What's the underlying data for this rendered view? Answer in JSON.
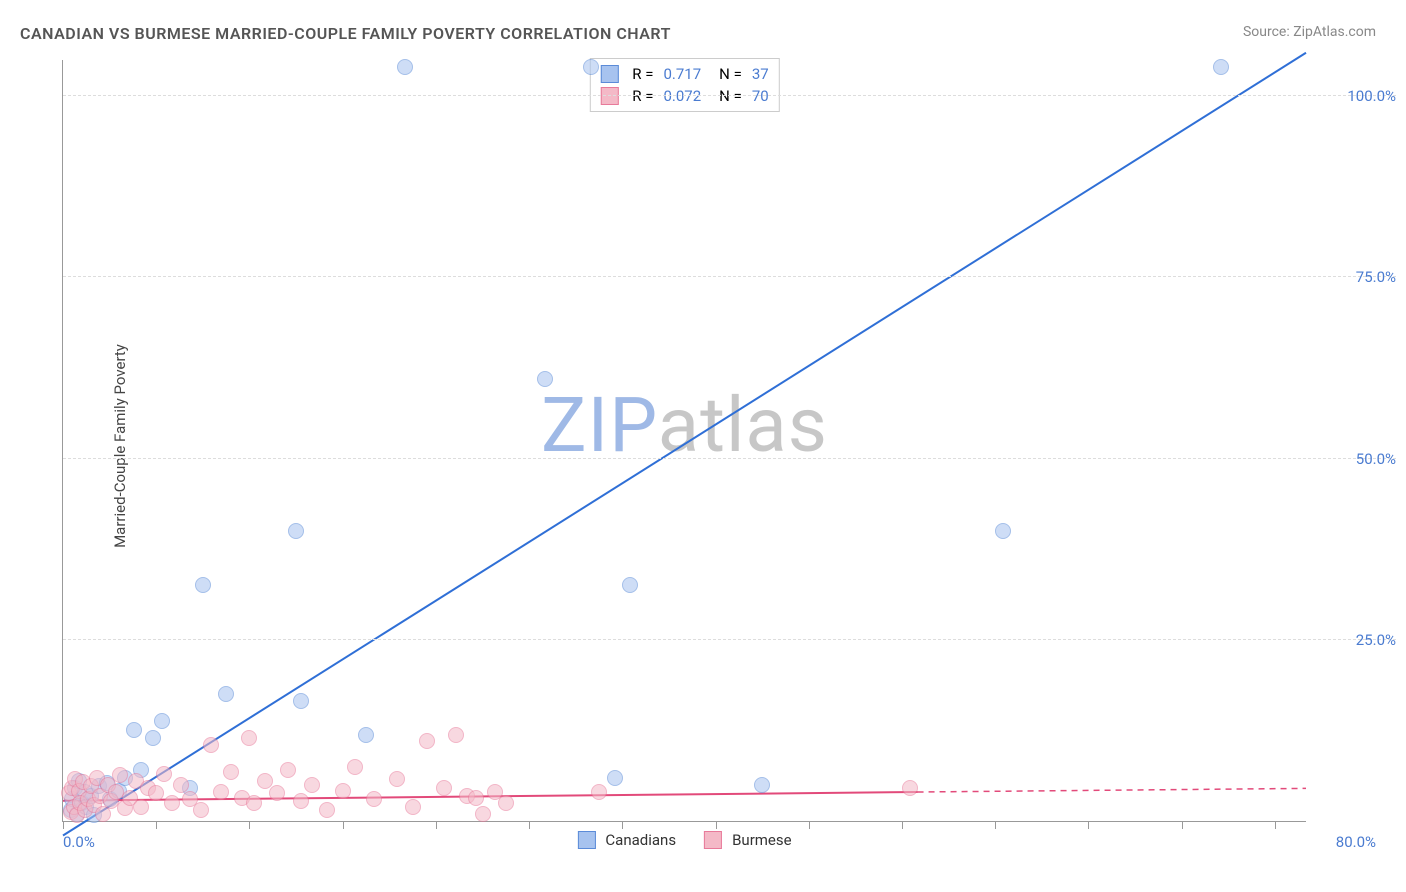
{
  "title": "CANADIAN VS BURMESE MARRIED-COUPLE FAMILY POVERTY CORRELATION CHART",
  "source_prefix": "Source: ",
  "source_name": "ZipAtlas.com",
  "ylabel": "Married-Couple Family Poverty",
  "watermark_a": "ZIP",
  "watermark_b": "atlas",
  "watermark_color_a": "#9fb9e6",
  "watermark_color_b": "#c7c7c7",
  "chart": {
    "type": "scatter",
    "background_color": "#ffffff",
    "grid_color": "#dddddd",
    "axis_color": "#999999",
    "xlim": [
      0,
      80
    ],
    "ylim": [
      0,
      105
    ],
    "x_origin_label": "0.0%",
    "x_max_label": "80.0%",
    "xtick_positions": [
      0,
      6,
      12,
      18,
      24,
      30,
      36,
      42,
      48,
      54,
      60,
      66,
      72,
      78
    ],
    "y_gridlines": [
      25,
      50,
      75,
      100
    ],
    "y_tick_labels": [
      "25.0%",
      "50.0%",
      "75.0%",
      "100.0%"
    ],
    "tick_label_color": "#4a7bd0",
    "marker_radius": 8,
    "marker_opacity": 0.55,
    "series": [
      {
        "name": "Canadians",
        "color_fill": "#a7c3ef",
        "color_stroke": "#5b8bd8",
        "r_label": "R =",
        "r_value": "0.717",
        "n_label": "N =",
        "n_value": "37",
        "trend": {
          "x1": 0,
          "y1": -2,
          "x2": 80,
          "y2": 106,
          "stroke": "#2f6fd6",
          "width": 2,
          "dash": ""
        },
        "points": [
          [
            0.5,
            1.5
          ],
          [
            0.6,
            3.0
          ],
          [
            0.8,
            4.5
          ],
          [
            0.9,
            1.0
          ],
          [
            1.0,
            5.5
          ],
          [
            1.2,
            2.5
          ],
          [
            1.4,
            4.0
          ],
          [
            1.5,
            2.0
          ],
          [
            1.8,
            3.5
          ],
          [
            2.0,
            0.8
          ],
          [
            2.3,
            4.8
          ],
          [
            2.8,
            5.2
          ],
          [
            3.0,
            3.0
          ],
          [
            3.6,
            4.2
          ],
          [
            4.0,
            6.0
          ],
          [
            4.6,
            12.5
          ],
          [
            5.0,
            7.0
          ],
          [
            5.8,
            11.5
          ],
          [
            6.4,
            13.8
          ],
          [
            8.2,
            4.5
          ],
          [
            9.0,
            32.5
          ],
          [
            10.5,
            17.5
          ],
          [
            15.0,
            40.0
          ],
          [
            15.3,
            16.5
          ],
          [
            19.5,
            11.8
          ],
          [
            22.0,
            104.0
          ],
          [
            31.0,
            61.0
          ],
          [
            34.0,
            104.0
          ],
          [
            35.5,
            6.0
          ],
          [
            36.5,
            32.5
          ],
          [
            45.0,
            5.0
          ],
          [
            60.5,
            40.0
          ],
          [
            74.5,
            104.0
          ]
        ]
      },
      {
        "name": "Burmese",
        "color_fill": "#f4b9c7",
        "color_stroke": "#e87a9a",
        "r_label": "R =",
        "r_value": "0.072",
        "n_label": "N =",
        "n_value": "70",
        "trend_solid": {
          "x1": 0,
          "y1": 2.8,
          "x2": 55,
          "y2": 4.0,
          "stroke": "#e24a7a",
          "width": 2
        },
        "trend_dash": {
          "x1": 55,
          "y1": 4.0,
          "x2": 80,
          "y2": 4.5,
          "stroke": "#e24a7a",
          "width": 1.5,
          "dash": "6,5"
        },
        "points": [
          [
            0.4,
            3.8
          ],
          [
            0.5,
            1.2
          ],
          [
            0.6,
            4.6
          ],
          [
            0.7,
            2.0
          ],
          [
            0.8,
            5.8
          ],
          [
            0.9,
            0.8
          ],
          [
            1.0,
            4.2
          ],
          [
            1.1,
            2.5
          ],
          [
            1.3,
            5.4
          ],
          [
            1.4,
            1.5
          ],
          [
            1.6,
            3.0
          ],
          [
            1.8,
            4.8
          ],
          [
            2.0,
            2.2
          ],
          [
            2.2,
            6.0
          ],
          [
            2.4,
            3.5
          ],
          [
            2.6,
            1.0
          ],
          [
            2.9,
            5.0
          ],
          [
            3.1,
            2.8
          ],
          [
            3.4,
            4.0
          ],
          [
            3.7,
            6.3
          ],
          [
            4.0,
            1.8
          ],
          [
            4.3,
            3.2
          ],
          [
            4.7,
            5.5
          ],
          [
            5.0,
            2.0
          ],
          [
            5.5,
            4.5
          ],
          [
            6.0,
            3.8
          ],
          [
            6.5,
            6.5
          ],
          [
            7.0,
            2.5
          ],
          [
            7.6,
            5.0
          ],
          [
            8.2,
            3.0
          ],
          [
            8.9,
            1.5
          ],
          [
            9.5,
            10.5
          ],
          [
            10.2,
            4.0
          ],
          [
            10.8,
            6.8
          ],
          [
            11.5,
            3.2
          ],
          [
            12.0,
            11.5
          ],
          [
            12.3,
            2.5
          ],
          [
            13.0,
            5.5
          ],
          [
            13.8,
            3.8
          ],
          [
            14.5,
            7.0
          ],
          [
            15.3,
            2.8
          ],
          [
            16.0,
            5.0
          ],
          [
            17.0,
            1.5
          ],
          [
            18.0,
            4.2
          ],
          [
            18.8,
            7.5
          ],
          [
            20.0,
            3.0
          ],
          [
            21.5,
            5.8
          ],
          [
            22.5,
            2.0
          ],
          [
            23.4,
            11.0
          ],
          [
            24.5,
            4.5
          ],
          [
            25.3,
            11.8
          ],
          [
            26.0,
            3.5
          ],
          [
            26.6,
            3.2
          ],
          [
            27.0,
            1.0
          ],
          [
            27.8,
            4.0
          ],
          [
            28.5,
            2.5
          ],
          [
            34.5,
            4.0
          ],
          [
            54.5,
            4.5
          ]
        ]
      }
    ],
    "legend_bottom": [
      {
        "label": "Canadians",
        "fill": "#a7c3ef",
        "stroke": "#5b8bd8"
      },
      {
        "label": "Burmese",
        "fill": "#f4b9c7",
        "stroke": "#e87a9a"
      }
    ]
  }
}
